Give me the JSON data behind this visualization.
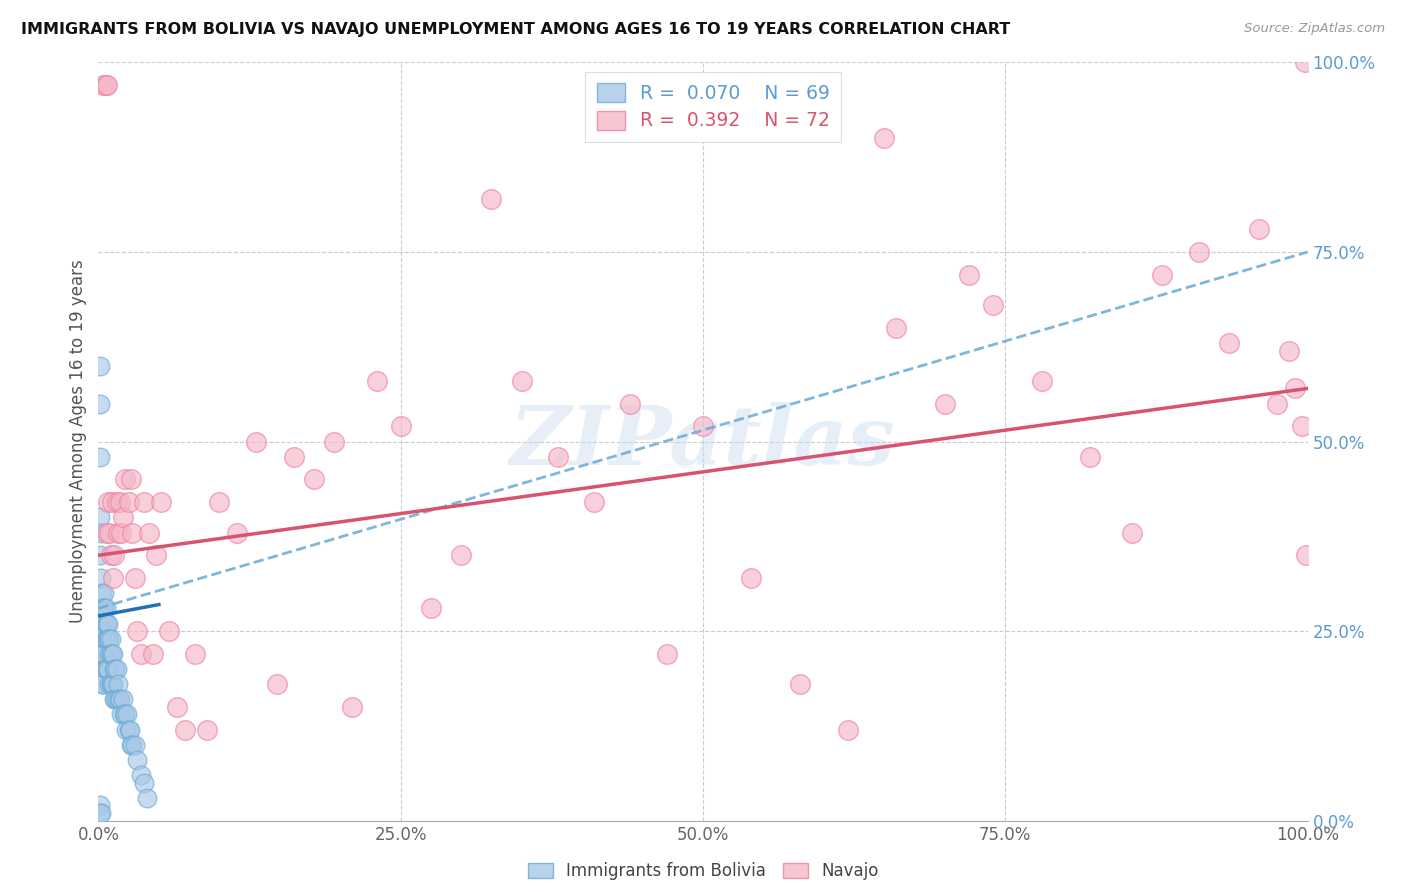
{
  "title": "IMMIGRANTS FROM BOLIVIA VS NAVAJO UNEMPLOYMENT AMONG AGES 16 TO 19 YEARS CORRELATION CHART",
  "source": "Source: ZipAtlas.com",
  "ylabel": "Unemployment Among Ages 16 to 19 years",
  "blue_label": "Immigrants from Bolivia",
  "pink_label": "Navajo",
  "blue_R": 0.07,
  "blue_N": 69,
  "pink_R": 0.392,
  "pink_N": 72,
  "blue_color": "#a8c8e8",
  "pink_color": "#f4b8c8",
  "blue_edge_color": "#6aaad4",
  "pink_edge_color": "#f080a0",
  "blue_line_color": "#2171b5",
  "pink_line_color": "#d9536f",
  "dashed_line_color": "#6aaad4",
  "watermark": "ZIPatlas",
  "xlim": [
    0,
    1.0
  ],
  "ylim": [
    0,
    1.0
  ],
  "xticks": [
    0.0,
    0.25,
    0.5,
    0.75,
    1.0
  ],
  "yticks": [
    0.0,
    0.25,
    0.5,
    0.75,
    1.0
  ],
  "xticklabels": [
    "0.0%",
    "25.0%",
    "50.0%",
    "75.0%",
    "100.0%"
  ],
  "yticklabels": [
    "0.0%",
    "25.0%",
    "50.0%",
    "75.0%",
    "100.0%"
  ],
  "blue_trend_x0": 0.0,
  "blue_trend_y0": 0.27,
  "blue_trend_x1": 0.05,
  "blue_trend_y1": 0.285,
  "pink_trend_x0": 0.0,
  "pink_trend_y0": 0.35,
  "pink_trend_x1": 1.0,
  "pink_trend_y1": 0.57,
  "dashed_trend_x0": 0.0,
  "dashed_trend_y0": 0.28,
  "dashed_trend_x1": 1.0,
  "dashed_trend_y1": 0.75,
  "blue_x": [
    0.001,
    0.001,
    0.001,
    0.001,
    0.001,
    0.002,
    0.002,
    0.002,
    0.002,
    0.003,
    0.003,
    0.003,
    0.003,
    0.003,
    0.004,
    0.004,
    0.004,
    0.004,
    0.005,
    0.005,
    0.005,
    0.005,
    0.006,
    0.006,
    0.006,
    0.006,
    0.007,
    0.007,
    0.007,
    0.008,
    0.008,
    0.008,
    0.009,
    0.009,
    0.009,
    0.01,
    0.01,
    0.01,
    0.011,
    0.011,
    0.012,
    0.012,
    0.013,
    0.013,
    0.014,
    0.014,
    0.015,
    0.015,
    0.016,
    0.017,
    0.018,
    0.019,
    0.02,
    0.021,
    0.022,
    0.023,
    0.024,
    0.025,
    0.026,
    0.027,
    0.028,
    0.03,
    0.032,
    0.035,
    0.038,
    0.04,
    0.001,
    0.001,
    0.002
  ],
  "blue_y": [
    0.6,
    0.55,
    0.48,
    0.4,
    0.35,
    0.38,
    0.32,
    0.28,
    0.22,
    0.3,
    0.28,
    0.25,
    0.22,
    0.18,
    0.28,
    0.25,
    0.22,
    0.18,
    0.3,
    0.28,
    0.25,
    0.22,
    0.28,
    0.26,
    0.24,
    0.2,
    0.26,
    0.24,
    0.2,
    0.26,
    0.24,
    0.2,
    0.24,
    0.22,
    0.18,
    0.24,
    0.22,
    0.18,
    0.22,
    0.18,
    0.22,
    0.18,
    0.2,
    0.16,
    0.2,
    0.16,
    0.2,
    0.16,
    0.18,
    0.16,
    0.16,
    0.14,
    0.16,
    0.14,
    0.14,
    0.12,
    0.14,
    0.12,
    0.12,
    0.1,
    0.1,
    0.1,
    0.08,
    0.06,
    0.05,
    0.03,
    0.02,
    0.01,
    0.01
  ],
  "pink_x": [
    0.004,
    0.006,
    0.007,
    0.007,
    0.008,
    0.009,
    0.01,
    0.011,
    0.012,
    0.013,
    0.015,
    0.016,
    0.018,
    0.019,
    0.02,
    0.022,
    0.025,
    0.027,
    0.028,
    0.03,
    0.032,
    0.035,
    0.038,
    0.042,
    0.045,
    0.048,
    0.052,
    0.058,
    0.065,
    0.072,
    0.08,
    0.09,
    0.1,
    0.115,
    0.13,
    0.148,
    0.162,
    0.178,
    0.195,
    0.21,
    0.23,
    0.25,
    0.275,
    0.3,
    0.325,
    0.35,
    0.38,
    0.41,
    0.44,
    0.47,
    0.5,
    0.54,
    0.58,
    0.62,
    0.66,
    0.7,
    0.74,
    0.78,
    0.82,
    0.855,
    0.88,
    0.91,
    0.935,
    0.96,
    0.975,
    0.985,
    0.99,
    0.995,
    0.998,
    0.999,
    0.65,
    0.72
  ],
  "pink_y": [
    0.97,
    0.97,
    0.97,
    0.38,
    0.42,
    0.38,
    0.35,
    0.42,
    0.32,
    0.35,
    0.42,
    0.38,
    0.42,
    0.38,
    0.4,
    0.45,
    0.42,
    0.45,
    0.38,
    0.32,
    0.25,
    0.22,
    0.42,
    0.38,
    0.22,
    0.35,
    0.42,
    0.25,
    0.15,
    0.12,
    0.22,
    0.12,
    0.42,
    0.38,
    0.5,
    0.18,
    0.48,
    0.45,
    0.5,
    0.15,
    0.58,
    0.52,
    0.28,
    0.35,
    0.82,
    0.58,
    0.48,
    0.42,
    0.55,
    0.22,
    0.52,
    0.32,
    0.18,
    0.12,
    0.65,
    0.55,
    0.68,
    0.58,
    0.48,
    0.38,
    0.72,
    0.75,
    0.63,
    0.78,
    0.55,
    0.62,
    0.57,
    0.52,
    1.0,
    0.35,
    0.9,
    0.72
  ]
}
